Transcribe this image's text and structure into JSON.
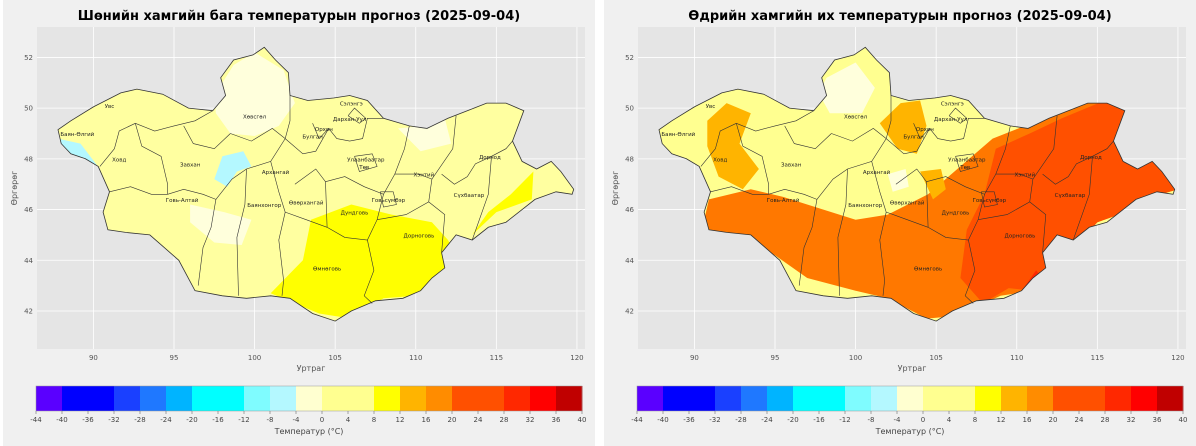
{
  "axes": {
    "xlabel": "Уртраг",
    "ylabel": "Өргөрөг",
    "xticks": [
      "90",
      "95",
      "100",
      "105",
      "110",
      "115",
      "120"
    ],
    "yticks": [
      "52",
      "50",
      "48",
      "46",
      "44",
      "42"
    ],
    "xlim": [
      86.5,
      120.5
    ],
    "ylim": [
      40.5,
      53.2
    ]
  },
  "colorbar": {
    "label": "Температур (°C)",
    "ticks": [
      "-44",
      "-40",
      "-36",
      "-32",
      "-28",
      "-24",
      "-20",
      "-16",
      "-12",
      "-8",
      "-4",
      "0",
      "4",
      "8",
      "12",
      "16",
      "20",
      "24",
      "28",
      "32",
      "36",
      "40"
    ],
    "colors": [
      "#5a00ff",
      "#0000ff",
      "#0000ff",
      "#1a40ff",
      "#1f78ff",
      "#00b4ff",
      "#00ffff",
      "#00ffff",
      "#7ffcff",
      "#b4f8ff",
      "#ffffd0",
      "#ffff90",
      "#ffff90",
      "#ffff00",
      "#ffb400",
      "#ff8c00",
      "#ff5000",
      "#ff5000",
      "#ff2800",
      "#ff0000",
      "#c00000"
    ]
  },
  "aimags": [
    {
      "name": "Увс",
      "lon": 91.0,
      "lat": 50.0
    },
    {
      "name": "Баян-Өлгий",
      "lon": 89.0,
      "lat": 48.9
    },
    {
      "name": "Ховд",
      "lon": 91.6,
      "lat": 47.9
    },
    {
      "name": "Хөвсгөл",
      "lon": 100.0,
      "lat": 49.6
    },
    {
      "name": "Завхан",
      "lon": 96.0,
      "lat": 47.7
    },
    {
      "name": "Архангай",
      "lon": 101.3,
      "lat": 47.4
    },
    {
      "name": "Сэлэнгэ",
      "lon": 106.0,
      "lat": 50.1
    },
    {
      "name": "Дархан-Уул",
      "lon": 105.9,
      "lat": 49.5
    },
    {
      "name": "Орхон",
      "lon": 104.3,
      "lat": 49.1
    },
    {
      "name": "Булган",
      "lon": 103.6,
      "lat": 48.8
    },
    {
      "name": "Улаанбаатар",
      "lon": 106.9,
      "lat": 47.9
    },
    {
      "name": "Төв",
      "lon": 106.8,
      "lat": 47.6
    },
    {
      "name": "Хэнтий",
      "lon": 110.5,
      "lat": 47.3
    },
    {
      "name": "Дорнод",
      "lon": 114.6,
      "lat": 48.0
    },
    {
      "name": "Сүхбаатар",
      "lon": 113.3,
      "lat": 46.5
    },
    {
      "name": "Говь-Алтай",
      "lon": 95.5,
      "lat": 46.3
    },
    {
      "name": "Баянхонгор",
      "lon": 100.6,
      "lat": 46.1
    },
    {
      "name": "Өвөрхангай",
      "lon": 103.2,
      "lat": 46.2
    },
    {
      "name": "Дундговь",
      "lon": 106.2,
      "lat": 45.8
    },
    {
      "name": "Говьсүмбэр",
      "lon": 108.3,
      "lat": 46.3
    },
    {
      "name": "Дорноговь",
      "lon": 110.2,
      "lat": 44.9
    },
    {
      "name": "Өмнөговь",
      "lon": 104.5,
      "lat": 43.6
    }
  ],
  "maps": [
    {
      "id": "min",
      "title": "Шөнийн хамгийн бага температурын прогноз (2025-09-04)",
      "base_color": "#ffffa0",
      "zones": [
        {
          "color": "#ffff00",
          "temp": 14,
          "pts": [
            [
              103.5,
              45.6
            ],
            [
              106,
              46.2
            ],
            [
              108.5,
              45.8
            ],
            [
              111,
              45.5
            ],
            [
              112,
              44.8
            ],
            [
              113,
              43.6
            ],
            [
              112,
              42.9
            ],
            [
              110,
              42.6
            ],
            [
              108,
              42.5
            ],
            [
              106,
              41.7
            ],
            [
              104,
              41.9
            ],
            [
              101,
              42.7
            ],
            [
              103,
              44
            ],
            [
              103.5,
              45.6
            ]
          ]
        },
        {
          "color": "#ffff00",
          "temp": 13,
          "pts": [
            [
              113.5,
              45
            ],
            [
              115,
              45.9
            ],
            [
              117.2,
              46.4
            ],
            [
              117.3,
              47.5
            ],
            [
              115.9,
              46.6
            ],
            [
              114.5,
              45.9
            ],
            [
              113.5,
              45
            ]
          ]
        },
        {
          "color": "#ffffdc",
          "temp": 5,
          "pts": [
            [
              97.5,
              50.5
            ],
            [
              98.7,
              51.7
            ],
            [
              100,
              52.2
            ],
            [
              101.8,
              51.5
            ],
            [
              102.5,
              50.2
            ],
            [
              101.5,
              49.3
            ],
            [
              100,
              48.9
            ],
            [
              98.5,
              49
            ],
            [
              97.6,
              49.8
            ],
            [
              97.5,
              50.5
            ]
          ]
        },
        {
          "color": "#ffffdc",
          "temp": 5,
          "pts": [
            [
              108.9,
              49.2
            ],
            [
              110.6,
              49.3
            ],
            [
              111.8,
              49.6
            ],
            [
              112.2,
              48.6
            ],
            [
              110.3,
              48.3
            ],
            [
              108.9,
              49.2
            ]
          ]
        },
        {
          "color": "#ffffdc",
          "temp": 5,
          "pts": [
            [
              96,
              46.2
            ],
            [
              98.1,
              45.9
            ],
            [
              99.8,
              45.6
            ],
            [
              99.2,
              44.6
            ],
            [
              97.5,
              44.7
            ],
            [
              96,
              45.5
            ],
            [
              96,
              46.2
            ]
          ]
        },
        {
          "color": "#b4f8ff",
          "temp": -2,
          "pts": [
            [
              87.8,
              48.8
            ],
            [
              89.2,
              48.6
            ],
            [
              90.4,
              47.6
            ],
            [
              90.2,
              47.3
            ],
            [
              89.3,
              47.9
            ],
            [
              88.2,
              48.2
            ],
            [
              87.8,
              48.8
            ]
          ]
        },
        {
          "color": "#b4f8ff",
          "temp": -2,
          "pts": [
            [
              97.5,
              47.2
            ],
            [
              98,
              48.1
            ],
            [
              99.3,
              48.3
            ],
            [
              99.8,
              47.7
            ],
            [
              98.9,
              47.5
            ],
            [
              98.3,
              46.9
            ],
            [
              97.5,
              47.2
            ]
          ]
        }
      ]
    },
    {
      "id": "max",
      "title": "Өдрийн хамгийн их температурын прогноз (2025-09-04)",
      "base_color": "#ffff90",
      "zones": [
        {
          "color": "#ff7800",
          "temp": 22,
          "pts": [
            [
              102,
              45.8
            ],
            [
              104.5,
              46.6
            ],
            [
              106.5,
              47.7
            ],
            [
              108.5,
              48.8
            ],
            [
              110.5,
              49.3
            ],
            [
              112.5,
              49.8
            ],
            [
              114,
              50.2
            ],
            [
              115.6,
              50.2
            ],
            [
              116,
              50.4
            ],
            [
              117.5,
              50.2
            ],
            [
              117.4,
              48.6
            ],
            [
              118.8,
              47.8
            ],
            [
              120,
              46.8
            ],
            [
              117.9,
              46.4
            ],
            [
              117.2,
              46
            ],
            [
              115,
              45.5
            ],
            [
              113.7,
              44.8
            ],
            [
              112.5,
              43.5
            ],
            [
              111,
              42.8
            ],
            [
              109,
              42.6
            ],
            [
              106.2,
              41.8
            ],
            [
              104.4,
              41.7
            ],
            [
              102,
              42.5
            ],
            [
              100,
              42.8
            ],
            [
              97,
              43.3
            ],
            [
              95,
              44.2
            ],
            [
              93.6,
              44.6
            ],
            [
              92,
              45
            ],
            [
              90.5,
              45.3
            ],
            [
              90.9,
              46.4
            ],
            [
              93.5,
              46.8
            ],
            [
              95.5,
              46.5
            ],
            [
              98,
              46
            ],
            [
              100,
              45.6
            ],
            [
              102,
              45.8
            ]
          ]
        },
        {
          "color": "#ff5000",
          "temp": 27,
          "pts": [
            [
              108.7,
              48.4
            ],
            [
              110.8,
              49
            ],
            [
              112.8,
              49.6
            ],
            [
              114.7,
              50.1
            ],
            [
              116.2,
              50.5
            ],
            [
              117.5,
              50.2
            ],
            [
              117.4,
              48.6
            ],
            [
              118.8,
              47.8
            ],
            [
              120,
              46.8
            ],
            [
              117.9,
              46.4
            ],
            [
              117.2,
              46
            ],
            [
              115,
              45.5
            ],
            [
              113.6,
              44.5
            ],
            [
              112.3,
              43.3
            ],
            [
              111,
              42.8
            ],
            [
              109.5,
              42.9
            ],
            [
              107.9,
              42.3
            ],
            [
              106.5,
              43.3
            ],
            [
              106.9,
              45.2
            ],
            [
              108,
              46.6
            ],
            [
              108.7,
              48.4
            ]
          ]
        },
        {
          "color": "#ff2800",
          "temp": 30,
          "pts": [
            [
              110.3,
              42.8
            ],
            [
              111.3,
              42.4
            ],
            [
              112,
              43
            ],
            [
              111.2,
              43.6
            ],
            [
              110.3,
              42.8
            ]
          ]
        },
        {
          "color": "#ffb400",
          "temp": 18,
          "pts": [
            [
              90.8,
              49.5
            ],
            [
              92,
              50.2
            ],
            [
              93.5,
              49.8
            ],
            [
              92.8,
              48.6
            ],
            [
              94,
              47.6
            ],
            [
              93,
              46.8
            ],
            [
              91.5,
              47.3
            ],
            [
              90.8,
              48.5
            ],
            [
              90.8,
              49.5
            ]
          ]
        },
        {
          "color": "#ffb400",
          "temp": 18,
          "pts": [
            [
              101.5,
              49.4
            ],
            [
              102.8,
              50.2
            ],
            [
              104,
              50.3
            ],
            [
              104.4,
              49.3
            ],
            [
              103.8,
              48.2
            ],
            [
              102.6,
              48.4
            ],
            [
              101.5,
              49.4
            ]
          ]
        },
        {
          "color": "#ffb400",
          "temp": 18,
          "pts": [
            [
              104,
              47.5
            ],
            [
              105.3,
              47.6
            ],
            [
              105.6,
              46.8
            ],
            [
              104.8,
              46.4
            ],
            [
              104,
              47.5
            ]
          ]
        },
        {
          "color": "#ffffdc",
          "temp": 8,
          "pts": [
            [
              98.2,
              51.2
            ],
            [
              100,
              51.8
            ],
            [
              101.2,
              50.8
            ],
            [
              100.4,
              49.8
            ],
            [
              98.4,
              49.8
            ],
            [
              97.7,
              50.6
            ],
            [
              98.2,
              51.2
            ]
          ]
        },
        {
          "color": "#ffffdc",
          "temp": 8,
          "pts": [
            [
              102,
              47.4
            ],
            [
              103.1,
              47.6
            ],
            [
              103.3,
              46.9
            ],
            [
              102.3,
              46.7
            ],
            [
              102,
              47.4
            ]
          ]
        }
      ]
    }
  ]
}
